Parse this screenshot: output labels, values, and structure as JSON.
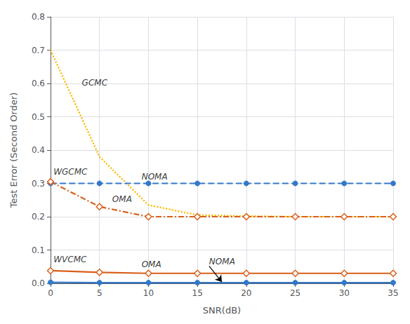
{
  "chart_data": {
    "type": "line",
    "xlabel": "SNR(dB)",
    "ylabel": "Test Error (Second Order)",
    "x": [
      0,
      5,
      10,
      15,
      20,
      25,
      30,
      35
    ],
    "series": [
      {
        "color": "#FFB800",
        "line_style": "dotted",
        "marker": "none",
        "values": [
          0.7,
          0.38,
          0.235,
          0.205,
          0.202,
          0.2,
          0.2,
          0.2
        ]
      },
      {
        "color": "#3478C8",
        "line_style": "dashed",
        "marker": "circle",
        "values": [
          0.3,
          0.3,
          0.3,
          0.3,
          0.3,
          0.3,
          0.3,
          0.3
        ]
      },
      {
        "color": "#D95F1A",
        "line_style": "dashdot",
        "marker": "open_diamond",
        "values": [
          0.305,
          0.23,
          0.2,
          0.2,
          0.2,
          0.2,
          0.2,
          0.2
        ]
      },
      {
        "color": "#3478C8",
        "line_style": "solid",
        "marker": "circle",
        "values": [
          0.003,
          0.002,
          0.002,
          0.002,
          0.002,
          0.002,
          0.002,
          0.002
        ]
      },
      {
        "color": "#D95F1A",
        "line_style": "solid",
        "marker": "open_diamond",
        "values": [
          0.038,
          0.033,
          0.03,
          0.03,
          0.03,
          0.03,
          0.03,
          0.03
        ]
      }
    ],
    "xlim": [
      0,
      35
    ],
    "xticks": [
      0,
      5,
      10,
      15,
      20,
      25,
      30,
      35
    ],
    "ylim": [
      0,
      0.8
    ],
    "yticks": [
      {
        "value": 0,
        "label": "0.0"
      },
      0.1,
      0.2,
      0.3,
      0.4,
      0.5,
      0.6,
      0.7,
      0.8
    ],
    "grid": true,
    "annotations": [
      {
        "text": "GCMC",
        "x": 3.2,
        "y": 0.59
      },
      {
        "text": "WGCMC",
        "x": 0.3,
        "y": 0.322
      },
      {
        "text": "NOMA",
        "x": 9.3,
        "y": 0.308
      },
      {
        "text": "OMA",
        "x": 6.3,
        "y": 0.24
      },
      {
        "text": "WVCMC",
        "x": 0.3,
        "y": 0.06
      },
      {
        "text": "OMA",
        "x": 9.3,
        "y": 0.044
      },
      {
        "text": "NOMA",
        "x": 16.2,
        "y": 0.052,
        "arrow_x": 17.5,
        "arrow_y": 0.004
      }
    ]
  }
}
